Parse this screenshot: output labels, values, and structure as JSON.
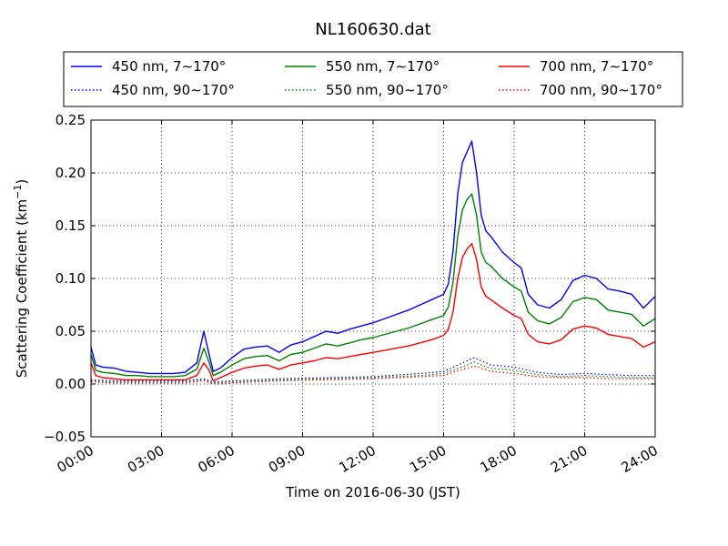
{
  "chart_data": {
    "type": "line",
    "title": "NL160630.dat",
    "xlabel": "Time on 2016-06-30 (JST)",
    "ylabel_main": "Scattering Coefficient (km",
    "ylabel_sup": "−1",
    "ylabel_close": ")",
    "xlim": [
      0,
      24
    ],
    "ylim": [
      -0.05,
      0.25
    ],
    "grid": true,
    "legend_position": "top, outside plot",
    "x_ticks": [
      {
        "value": 0,
        "label": "00:00"
      },
      {
        "value": 3,
        "label": "03:00"
      },
      {
        "value": 6,
        "label": "06:00"
      },
      {
        "value": 9,
        "label": "09:00"
      },
      {
        "value": 12,
        "label": "12:00"
      },
      {
        "value": 15,
        "label": "15:00"
      },
      {
        "value": 18,
        "label": "18:00"
      },
      {
        "value": 21,
        "label": "21:00"
      },
      {
        "value": 24,
        "label": "24:00"
      }
    ],
    "y_ticks": [
      {
        "value": -0.05,
        "label": "−0.05"
      },
      {
        "value": 0.0,
        "label": "0.00"
      },
      {
        "value": 0.05,
        "label": "0.05"
      },
      {
        "value": 0.1,
        "label": "0.10"
      },
      {
        "value": 0.15,
        "label": "0.15"
      },
      {
        "value": 0.2,
        "label": "0.20"
      },
      {
        "value": 0.25,
        "label": "0.25"
      }
    ],
    "series": [
      {
        "name": "450 nm, 7∼170°",
        "color": "#0000ff",
        "style": "solid",
        "x": [
          0.0,
          0.2,
          0.5,
          1.0,
          1.5,
          2.0,
          2.5,
          3.0,
          3.5,
          4.0,
          4.5,
          4.8,
          5.0,
          5.2,
          5.5,
          6.0,
          6.5,
          7.0,
          7.5,
          8.0,
          8.5,
          9.0,
          9.5,
          10.0,
          10.5,
          11.0,
          11.5,
          12.0,
          12.5,
          13.0,
          13.5,
          14.0,
          14.5,
          15.0,
          15.2,
          15.4,
          15.6,
          15.8,
          16.0,
          16.2,
          16.4,
          16.6,
          16.8,
          17.0,
          17.5,
          18.0,
          18.3,
          18.6,
          19.0,
          19.5,
          20.0,
          20.5,
          21.0,
          21.5,
          22.0,
          22.5,
          23.0,
          23.5,
          24.0
        ],
        "y": [
          0.035,
          0.018,
          0.016,
          0.015,
          0.012,
          0.011,
          0.01,
          0.01,
          0.01,
          0.011,
          0.02,
          0.05,
          0.03,
          0.012,
          0.015,
          0.025,
          0.033,
          0.035,
          0.036,
          0.03,
          0.037,
          0.04,
          0.045,
          0.05,
          0.048,
          0.052,
          0.055,
          0.058,
          0.062,
          0.066,
          0.07,
          0.075,
          0.08,
          0.085,
          0.095,
          0.125,
          0.18,
          0.21,
          0.22,
          0.23,
          0.2,
          0.16,
          0.145,
          0.14,
          0.125,
          0.115,
          0.11,
          0.085,
          0.075,
          0.072,
          0.08,
          0.098,
          0.103,
          0.1,
          0.09,
          0.088,
          0.085,
          0.072,
          0.083
        ]
      },
      {
        "name": "450 nm, 90∼170°",
        "color": "#0000ff",
        "style": "dotted",
        "x": [
          0.0,
          1.0,
          2.0,
          3.0,
          4.0,
          4.8,
          5.2,
          6.0,
          8.0,
          10.0,
          12.0,
          14.0,
          15.0,
          15.5,
          16.0,
          16.3,
          16.6,
          17.0,
          18.0,
          19.0,
          20.0,
          21.0,
          22.0,
          23.0,
          24.0
        ],
        "y": [
          0.004,
          0.003,
          0.003,
          0.003,
          0.003,
          0.005,
          0.002,
          0.003,
          0.005,
          0.006,
          0.007,
          0.01,
          0.012,
          0.017,
          0.022,
          0.025,
          0.022,
          0.018,
          0.016,
          0.011,
          0.009,
          0.01,
          0.009,
          0.008,
          0.008
        ]
      },
      {
        "name": "550 nm, 7∼170°",
        "color": "#008000",
        "style": "solid",
        "x": [
          0.0,
          0.2,
          0.5,
          1.0,
          1.5,
          2.0,
          2.5,
          3.0,
          3.5,
          4.0,
          4.5,
          4.8,
          5.0,
          5.2,
          5.5,
          6.0,
          6.5,
          7.0,
          7.5,
          8.0,
          8.5,
          9.0,
          9.5,
          10.0,
          10.5,
          11.0,
          11.5,
          12.0,
          12.5,
          13.0,
          13.5,
          14.0,
          14.5,
          15.0,
          15.2,
          15.4,
          15.6,
          15.8,
          16.0,
          16.2,
          16.4,
          16.6,
          16.8,
          17.0,
          17.5,
          18.0,
          18.3,
          18.6,
          19.0,
          19.5,
          20.0,
          20.5,
          21.0,
          21.5,
          22.0,
          22.5,
          23.0,
          23.5,
          24.0
        ],
        "y": [
          0.028,
          0.013,
          0.011,
          0.01,
          0.008,
          0.008,
          0.007,
          0.007,
          0.007,
          0.008,
          0.014,
          0.034,
          0.022,
          0.008,
          0.011,
          0.018,
          0.024,
          0.026,
          0.027,
          0.022,
          0.028,
          0.03,
          0.034,
          0.038,
          0.036,
          0.039,
          0.042,
          0.044,
          0.047,
          0.05,
          0.053,
          0.057,
          0.061,
          0.065,
          0.073,
          0.096,
          0.14,
          0.165,
          0.175,
          0.18,
          0.16,
          0.125,
          0.115,
          0.112,
          0.1,
          0.092,
          0.088,
          0.068,
          0.06,
          0.057,
          0.063,
          0.078,
          0.082,
          0.08,
          0.07,
          0.068,
          0.066,
          0.055,
          0.062
        ]
      },
      {
        "name": "550 nm, 90∼170°",
        "color": "#008000",
        "style": "dotted",
        "x": [
          0.0,
          1.0,
          2.0,
          3.0,
          4.0,
          4.8,
          5.2,
          6.0,
          8.0,
          10.0,
          12.0,
          14.0,
          15.0,
          15.5,
          16.0,
          16.3,
          16.6,
          17.0,
          18.0,
          19.0,
          20.0,
          21.0,
          22.0,
          23.0,
          24.0
        ],
        "y": [
          0.003,
          0.002,
          0.002,
          0.002,
          0.002,
          0.004,
          0.001,
          0.002,
          0.004,
          0.005,
          0.006,
          0.008,
          0.01,
          0.014,
          0.018,
          0.021,
          0.018,
          0.015,
          0.013,
          0.009,
          0.007,
          0.008,
          0.007,
          0.006,
          0.006
        ]
      },
      {
        "name": "700 nm, 7∼170°",
        "color": "#ff0000",
        "style": "solid",
        "x": [
          0.0,
          0.2,
          0.5,
          1.0,
          1.5,
          2.0,
          2.5,
          3.0,
          3.5,
          4.0,
          4.5,
          4.8,
          5.0,
          5.2,
          5.5,
          6.0,
          6.5,
          7.0,
          7.5,
          8.0,
          8.5,
          9.0,
          9.5,
          10.0,
          10.5,
          11.0,
          11.5,
          12.0,
          12.5,
          13.0,
          13.5,
          14.0,
          14.5,
          15.0,
          15.2,
          15.4,
          15.6,
          15.8,
          16.0,
          16.2,
          16.4,
          16.6,
          16.8,
          17.0,
          17.5,
          18.0,
          18.3,
          18.6,
          19.0,
          19.5,
          20.0,
          20.5,
          21.0,
          21.5,
          22.0,
          22.5,
          23.0,
          23.5,
          24.0
        ],
        "y": [
          0.02,
          0.008,
          0.006,
          0.005,
          0.004,
          0.004,
          0.004,
          0.004,
          0.004,
          0.004,
          0.008,
          0.02,
          0.014,
          0.003,
          0.006,
          0.011,
          0.015,
          0.017,
          0.018,
          0.014,
          0.018,
          0.02,
          0.022,
          0.025,
          0.024,
          0.026,
          0.028,
          0.03,
          0.032,
          0.034,
          0.036,
          0.039,
          0.042,
          0.046,
          0.052,
          0.068,
          0.1,
          0.12,
          0.128,
          0.133,
          0.118,
          0.092,
          0.083,
          0.08,
          0.072,
          0.065,
          0.062,
          0.047,
          0.04,
          0.038,
          0.042,
          0.052,
          0.055,
          0.053,
          0.047,
          0.045,
          0.043,
          0.035,
          0.04
        ]
      },
      {
        "name": "700 nm, 90∼170°",
        "color": "#ff0000",
        "style": "dotted",
        "x": [
          0.0,
          1.0,
          2.0,
          3.0,
          4.0,
          4.8,
          5.2,
          6.0,
          8.0,
          10.0,
          12.0,
          14.0,
          15.0,
          15.5,
          16.0,
          16.3,
          16.6,
          17.0,
          18.0,
          19.0,
          20.0,
          21.0,
          22.0,
          23.0,
          24.0
        ],
        "y": [
          0.002,
          0.001,
          0.001,
          0.001,
          0.001,
          0.003,
          0.0,
          0.001,
          0.003,
          0.004,
          0.005,
          0.007,
          0.008,
          0.012,
          0.015,
          0.017,
          0.015,
          0.012,
          0.01,
          0.007,
          0.006,
          0.006,
          0.005,
          0.005,
          0.005
        ]
      }
    ]
  }
}
